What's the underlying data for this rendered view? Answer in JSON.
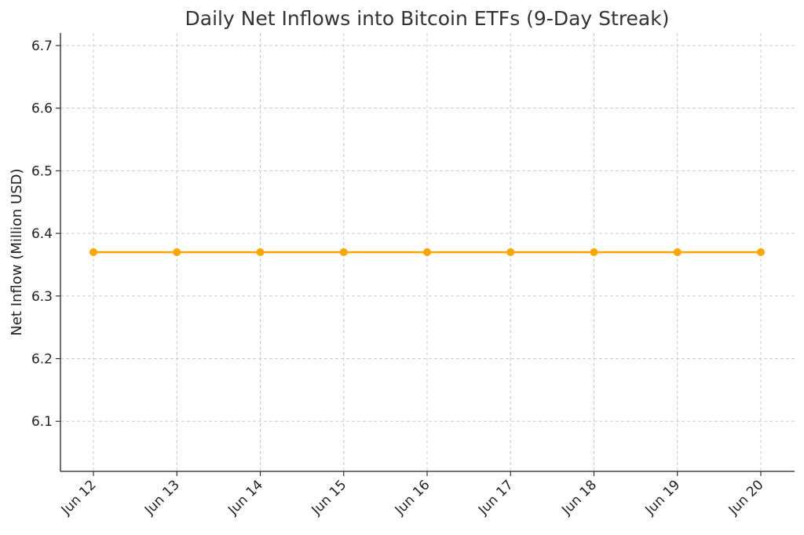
{
  "chart_data": {
    "type": "line",
    "title": "Daily Net Inflows into Bitcoin ETFs (9-Day Streak)",
    "xlabel": "",
    "ylabel": "Net Inflow (Million USD)",
    "categories": [
      "Jun 12",
      "Jun 13",
      "Jun 14",
      "Jun 15",
      "Jun 16",
      "Jun 17",
      "Jun 18",
      "Jun 19",
      "Jun 20"
    ],
    "series": [
      {
        "values": [
          6.37,
          6.37,
          6.37,
          6.37,
          6.37,
          6.37,
          6.37,
          6.37,
          6.37
        ],
        "color": "#FFA500"
      }
    ],
    "ylim": [
      6.02,
      6.72
    ],
    "yticks": [
      "6.1",
      "6.2",
      "6.3",
      "6.4",
      "6.5",
      "6.6",
      "6.7"
    ],
    "grid": true,
    "legend": "none",
    "colors": {
      "line": "#FFA500",
      "grid": "#cccccc",
      "axis": "#222222",
      "title": "#333333"
    }
  }
}
